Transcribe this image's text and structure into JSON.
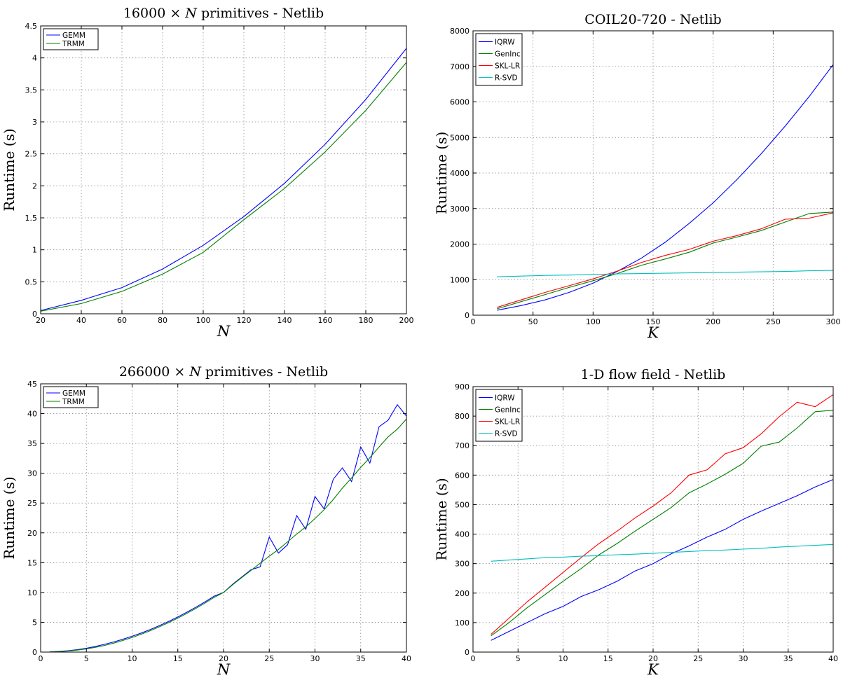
{
  "chart_data": [
    {
      "type": "line",
      "title_parts": [
        "16000 × ",
        "N",
        " primitives - Netlib"
      ],
      "xlabel": "N",
      "ylabel": "Runtime (s)",
      "xlim": [
        20,
        200
      ],
      "ylim": [
        0,
        4.5
      ],
      "xticks": [
        20,
        40,
        60,
        80,
        100,
        120,
        140,
        160,
        180,
        200
      ],
      "yticks": [
        0,
        0.5,
        1,
        1.5,
        2,
        2.5,
        3,
        3.5,
        4,
        4.5
      ],
      "ytick_labels": [
        "0",
        "0.5",
        "1",
        "1.5",
        "2",
        "2.5",
        "3",
        "3.5",
        "4",
        "4.5"
      ],
      "grid": true,
      "legend_position": "top-left",
      "series": [
        {
          "name": "GEMM",
          "color": "#0000ff",
          "x": [
            20,
            40,
            60,
            80,
            100,
            120,
            140,
            160,
            180,
            200
          ],
          "values": [
            0.05,
            0.21,
            0.41,
            0.7,
            1.07,
            1.52,
            2.04,
            2.65,
            3.35,
            4.15
          ]
        },
        {
          "name": "TRMM",
          "color": "#008000",
          "x": [
            20,
            40,
            60,
            80,
            100,
            120,
            140,
            160,
            180,
            200
          ],
          "values": [
            0.04,
            0.16,
            0.35,
            0.62,
            0.96,
            1.47,
            1.96,
            2.53,
            3.18,
            3.93
          ]
        }
      ]
    },
    {
      "type": "line",
      "title_parts": [
        "COIL20-720 - Netlib"
      ],
      "xlabel": "K",
      "ylabel": "Runtime (s)",
      "xlim": [
        0,
        300
      ],
      "ylim": [
        0,
        8000
      ],
      "xticks": [
        0,
        50,
        100,
        150,
        200,
        250,
        300
      ],
      "yticks": [
        0,
        1000,
        2000,
        3000,
        4000,
        5000,
        6000,
        7000,
        8000
      ],
      "ytick_labels": [
        "0",
        "1000",
        "2000",
        "3000",
        "4000",
        "5000",
        "6000",
        "7000",
        "8000"
      ],
      "grid": true,
      "legend_position": "top-left",
      "series": [
        {
          "name": "IQRW",
          "color": "#0000ff",
          "x": [
            20,
            40,
            60,
            80,
            100,
            120,
            140,
            160,
            180,
            200,
            220,
            240,
            260,
            280,
            300
          ],
          "values": [
            140,
            270,
            430,
            640,
            900,
            1230,
            1600,
            2050,
            2580,
            3160,
            3820,
            4540,
            5320,
            6150,
            7050
          ]
        },
        {
          "name": "GenInc",
          "color": "#008000",
          "x": [
            20,
            40,
            60,
            80,
            100,
            120,
            140,
            160,
            180,
            200,
            220,
            240,
            260,
            280,
            300
          ],
          "values": [
            180,
            380,
            580,
            780,
            970,
            1170,
            1400,
            1580,
            1770,
            2030,
            2200,
            2380,
            2620,
            2860,
            2900
          ]
        },
        {
          "name": "SKL-LR",
          "color": "#ff0000",
          "x": [
            20,
            40,
            60,
            80,
            100,
            120,
            140,
            160,
            180,
            200,
            220,
            240,
            260,
            280,
            300
          ],
          "values": [
            220,
            430,
            640,
            830,
            1020,
            1240,
            1480,
            1680,
            1850,
            2080,
            2240,
            2430,
            2700,
            2730,
            2880
          ]
        },
        {
          "name": "R-SVD",
          "color": "#00bfbf",
          "x": [
            20,
            40,
            60,
            80,
            100,
            120,
            140,
            160,
            180,
            200,
            220,
            240,
            260,
            280,
            300
          ],
          "values": [
            1080,
            1100,
            1120,
            1130,
            1145,
            1160,
            1170,
            1180,
            1190,
            1200,
            1210,
            1220,
            1230,
            1250,
            1260
          ]
        }
      ]
    },
    {
      "type": "line",
      "title_parts": [
        "266000 × ",
        "N",
        " primitives - Netlib"
      ],
      "xlabel": "N",
      "ylabel": "Runtime (s)",
      "xlim": [
        0,
        40
      ],
      "ylim": [
        0,
        45
      ],
      "xticks": [
        0,
        5,
        10,
        15,
        20,
        25,
        30,
        35,
        40
      ],
      "yticks": [
        0,
        5,
        10,
        15,
        20,
        25,
        30,
        35,
        40,
        45
      ],
      "ytick_labels": [
        "0",
        "5",
        "10",
        "15",
        "20",
        "25",
        "30",
        "35",
        "40",
        "45"
      ],
      "grid": true,
      "legend_position": "top-left",
      "series": [
        {
          "name": "GEMM",
          "color": "#0000ff",
          "x": [
            1,
            2,
            3,
            4,
            5,
            6,
            7,
            8,
            9,
            10,
            11,
            12,
            13,
            14,
            15,
            16,
            17,
            18,
            19,
            20,
            21,
            22,
            23,
            24,
            25,
            26,
            27,
            28,
            29,
            30,
            31,
            32,
            33,
            34,
            35,
            36,
            37,
            38,
            39,
            40
          ],
          "values": [
            0.03,
            0.1,
            0.23,
            0.41,
            0.65,
            0.95,
            1.3,
            1.7,
            2.15,
            2.65,
            3.2,
            3.8,
            4.45,
            5.15,
            5.9,
            6.7,
            7.55,
            8.45,
            9.4,
            10.0,
            11.4,
            12.6,
            13.8,
            14.3,
            19.3,
            16.6,
            18.0,
            22.9,
            20.6,
            26.1,
            24.0,
            29.0,
            30.9,
            28.6,
            34.4,
            31.7,
            37.8,
            38.9,
            41.5,
            39.6
          ]
        },
        {
          "name": "TRMM",
          "color": "#008000",
          "x": [
            1,
            2,
            3,
            4,
            5,
            6,
            7,
            8,
            9,
            10,
            11,
            12,
            13,
            14,
            15,
            16,
            17,
            18,
            19,
            20,
            21,
            22,
            23,
            24,
            25,
            26,
            27,
            28,
            29,
            30,
            31,
            32,
            33,
            34,
            35,
            36,
            37,
            38,
            39,
            40
          ],
          "values": [
            0.02,
            0.08,
            0.18,
            0.33,
            0.53,
            0.8,
            1.12,
            1.5,
            1.95,
            2.45,
            3.0,
            3.6,
            4.25,
            4.95,
            5.7,
            6.5,
            7.35,
            8.25,
            9.2,
            10.0,
            11.3,
            12.5,
            13.7,
            14.9,
            16.1,
            17.2,
            18.5,
            19.8,
            21.0,
            22.4,
            23.9,
            25.6,
            27.5,
            29.2,
            31.0,
            32.6,
            34.4,
            36.1,
            37.4,
            39.1
          ]
        }
      ]
    },
    {
      "type": "line",
      "title_parts": [
        "1-D flow field - Netlib"
      ],
      "xlabel": "K",
      "ylabel": "Runtime (s)",
      "xlim": [
        0,
        40
      ],
      "ylim": [
        0,
        900
      ],
      "xticks": [
        0,
        5,
        10,
        15,
        20,
        25,
        30,
        35,
        40
      ],
      "yticks": [
        0,
        100,
        200,
        300,
        400,
        500,
        600,
        700,
        800,
        900
      ],
      "ytick_labels": [
        "0",
        "100",
        "200",
        "300",
        "400",
        "500",
        "600",
        "700",
        "800",
        "900"
      ],
      "grid": true,
      "legend_position": "top-left",
      "series": [
        {
          "name": "IQRW",
          "color": "#0000ff",
          "x": [
            2,
            4,
            6,
            8,
            10,
            12,
            14,
            16,
            18,
            20,
            22,
            24,
            26,
            28,
            30,
            32,
            34,
            36,
            38,
            40
          ],
          "values": [
            40,
            70,
            100,
            130,
            155,
            188,
            212,
            240,
            275,
            300,
            333,
            360,
            390,
            416,
            450,
            478,
            504,
            530,
            560,
            585
          ]
        },
        {
          "name": "GenInc",
          "color": "#008000",
          "x": [
            2,
            4,
            6,
            8,
            10,
            12,
            14,
            16,
            18,
            20,
            22,
            24,
            26,
            28,
            30,
            32,
            34,
            36,
            38,
            40
          ],
          "values": [
            55,
            100,
            150,
            195,
            240,
            283,
            330,
            368,
            410,
            450,
            490,
            540,
            570,
            603,
            640,
            698,
            712,
            760,
            815,
            820
          ]
        },
        {
          "name": "SKL-LR",
          "color": "#ff0000",
          "x": [
            2,
            4,
            6,
            8,
            10,
            12,
            14,
            16,
            18,
            20,
            22,
            24,
            26,
            28,
            30,
            32,
            34,
            36,
            38,
            40
          ],
          "values": [
            60,
            115,
            170,
            220,
            270,
            320,
            368,
            410,
            455,
            495,
            540,
            600,
            618,
            672,
            693,
            740,
            798,
            847,
            832,
            873
          ]
        },
        {
          "name": "R-SVD",
          "color": "#00bfbf",
          "x": [
            2,
            4,
            6,
            8,
            10,
            12,
            14,
            16,
            18,
            20,
            22,
            24,
            26,
            28,
            30,
            32,
            34,
            36,
            38,
            40
          ],
          "values": [
            308,
            312,
            316,
            320,
            322,
            325,
            327,
            330,
            332,
            335,
            338,
            341,
            344,
            346,
            349,
            352,
            356,
            359,
            362,
            365
          ]
        }
      ]
    }
  ]
}
